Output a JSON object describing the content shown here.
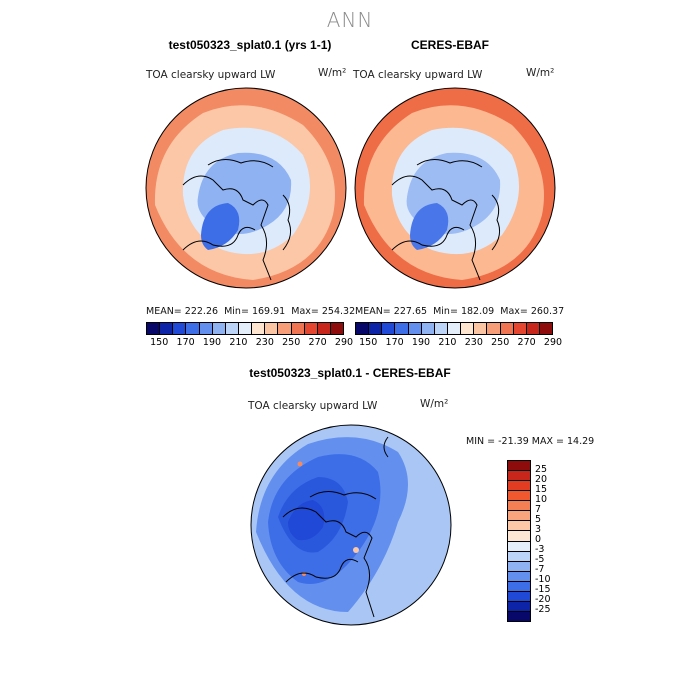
{
  "title": "ANN",
  "panels": {
    "model": {
      "title": "test050323_splat0.1 (yrs 1-1)",
      "variable": "TOA clearsky upward LW",
      "units": "W/m²",
      "mean_label": "MEAN=",
      "mean": "222.26",
      "min_label": "Min=",
      "min": "169.91",
      "max_label": "Max=",
      "max": "254.32"
    },
    "obs": {
      "title": "CERES-EBAF",
      "variable": "TOA clearsky upward LW",
      "units": "W/m²",
      "mean_label": "MEAN=",
      "mean": "227.65",
      "min_label": "Min=",
      "min": "182.09",
      "max_label": "Max=",
      "max": "260.37"
    },
    "diff": {
      "title": "test050323_splat0.1 - CERES-EBAF",
      "variable": "TOA clearsky upward LW",
      "units": "W/m²",
      "min_label": "MIN =",
      "min": "-21.39",
      "max_label": "MAX =",
      "max": "14.29"
    }
  },
  "colorbar_main": {
    "ticks": [
      "150",
      "170",
      "190",
      "210",
      "230",
      "250",
      "270",
      "290"
    ],
    "colors": [
      "#08086b",
      "#0d24a8",
      "#1f49d6",
      "#3d6ee8",
      "#6390ee",
      "#8fb2f2",
      "#bcd4f7",
      "#e4eefb",
      "#fde5cf",
      "#fbc5a3",
      "#f79d77",
      "#f07451",
      "#e5462f",
      "#c8261a",
      "#8e0c0c"
    ]
  },
  "colorbar_diff": {
    "ticks": [
      "25",
      "20",
      "15",
      "10",
      "7",
      "5",
      "3",
      "0",
      "-3",
      "-5",
      "-7",
      "-10",
      "-15",
      "-20",
      "-25"
    ],
    "colors": [
      "#8e0c0c",
      "#c8261a",
      "#e23c22",
      "#f0592f",
      "#f57f55",
      "#f9a47d",
      "#fcc8a8",
      "#fde6d3",
      "#e4eefb",
      "#bcd4f7",
      "#8fb2f2",
      "#6390ee",
      "#3d6ee8",
      "#1f49d6",
      "#0d24a8",
      "#08086b"
    ]
  },
  "map_colors": {
    "model": {
      "outer": "#f28a63",
      "mid": "#fbc7a6",
      "inner": "#ddeafb",
      "cold": "#8fb2f2",
      "core": "#3d6ee8"
    },
    "obs": {
      "outer": "#ee6c46",
      "mid": "#fbb891",
      "inner": "#ddeafb",
      "cold": "#9dbcf3",
      "core": "#4977e9"
    },
    "diff": {
      "outer": "#a9c6f5",
      "mid": "#6390ee",
      "inner": "#3d6ee8",
      "cold": "#2a58dc",
      "core": "#1f49d6"
    }
  }
}
